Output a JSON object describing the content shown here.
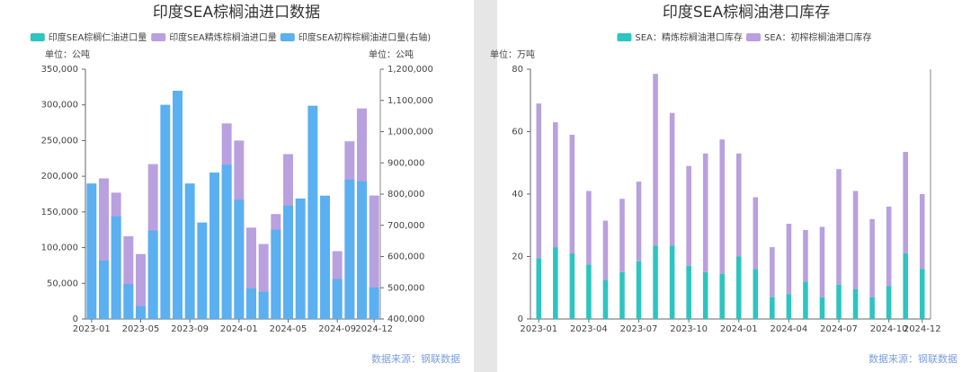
{
  "chart_data": [
    {
      "type": "bar",
      "title": "印度SEA棕榈油进口数据",
      "y_label": "单位：公吨",
      "y2_label": "单位：公吨",
      "source": "数据来源：钢联数据",
      "categories": [
        "2023-01",
        null,
        null,
        null,
        "2023-05",
        null,
        null,
        null,
        "2023-09",
        null,
        null,
        null,
        "2024-01",
        null,
        null,
        null,
        "2024-05",
        null,
        null,
        null,
        "2024-09",
        null,
        null,
        "2024-12"
      ],
      "series": [
        {
          "name": "印度SEA棕榈仁油进口量",
          "color": "#2ec4c0",
          "values": [
            null,
            null,
            null,
            null,
            null,
            null,
            null,
            null,
            null,
            null,
            null,
            null,
            null,
            null,
            null,
            null,
            null,
            null,
            null,
            null,
            null,
            null,
            null,
            null
          ]
        },
        {
          "name": "印度SEA精炼棕榈油进口量",
          "color": "#b9a0de",
          "values": [
            null,
            197000,
            177000,
            116000,
            91000,
            217000,
            null,
            null,
            null,
            null,
            null,
            274000,
            250000,
            128000,
            105000,
            147000,
            231000,
            null,
            null,
            null,
            95000,
            249000,
            295000,
            173000
          ]
        },
        {
          "name": "印度SEA初榨棕榈油进口量(右轴)",
          "color": "#5ab0f0",
          "axis": "y2",
          "values": [
            834000,
            587000,
            729000,
            512000,
            441000,
            683000,
            1086000,
            1131000,
            834000,
            709000,
            869000,
            894000,
            782000,
            498000,
            487000,
            686000,
            763000,
            786000,
            1083000,
            795000,
            528000,
            846000,
            841000,
            501000
          ]
        }
      ],
      "ylim": [
        0,
        350000
      ],
      "yticks": [
        0,
        {
          "value": 50000,
          "label": "50,000"
        },
        {
          "value": 100000,
          "label": "100,000"
        },
        {
          "value": 150000,
          "label": "150,000"
        },
        {
          "value": 200000,
          "label": "200,000"
        },
        {
          "value": 250000,
          "label": "250,000"
        },
        {
          "value": 300000,
          "label": "300,000"
        },
        {
          "value": 350000,
          "label": "350,000"
        }
      ],
      "y2lim": [
        400000,
        1200000
      ],
      "y2ticks": [
        {
          "value": 400000,
          "label": "400,000"
        },
        {
          "value": 500000,
          "label": "500,000"
        },
        {
          "value": 600000,
          "label": "600,000"
        },
        {
          "value": 700000,
          "label": "700,000"
        },
        {
          "value": 800000,
          "label": "800,000"
        },
        {
          "value": 900000,
          "label": "900,000"
        },
        {
          "value": 1000000,
          "label": "1,000,000"
        },
        {
          "value": 1100000,
          "label": "1,100,000"
        },
        {
          "value": 1200000,
          "label": "1,200,000"
        }
      ],
      "stacked": false
    },
    {
      "type": "bar",
      "title": "印度SEA棕榈油港口库存",
      "y_label": "单位：万吨",
      "source": "数据来源：钢联数据",
      "categories": [
        "2023-01",
        null,
        null,
        "2023-04",
        null,
        null,
        "2023-07",
        null,
        null,
        "2023-10",
        null,
        null,
        "2024-01",
        null,
        null,
        "2024-04",
        null,
        null,
        "2024-07",
        null,
        null,
        "2024-10",
        null,
        "2024-12"
      ],
      "series": [
        {
          "name": "SEA：精炼棕榈油港口库存",
          "color": "#2ec4c0",
          "values": [
            19.5,
            23,
            21,
            17.5,
            12.5,
            15,
            18.5,
            23.5,
            23.5,
            17,
            15,
            14.5,
            20,
            16,
            7,
            8,
            12,
            7,
            11,
            9.5,
            7,
            10.5,
            21,
            16
          ]
        },
        {
          "name": "SEA：初榨棕榈油港口库存",
          "color": "#b9a0de",
          "values": [
            49.5,
            40,
            38,
            23.5,
            19,
            23.5,
            25.5,
            55,
            42.5,
            32,
            38,
            43,
            33,
            23,
            16,
            22.5,
            16.5,
            22.5,
            37,
            31.5,
            25,
            25.5,
            32.5,
            24
          ]
        }
      ],
      "ylim": [
        0,
        80
      ],
      "yticks": [
        0,
        20,
        40,
        60,
        80
      ],
      "stacked": true
    }
  ]
}
